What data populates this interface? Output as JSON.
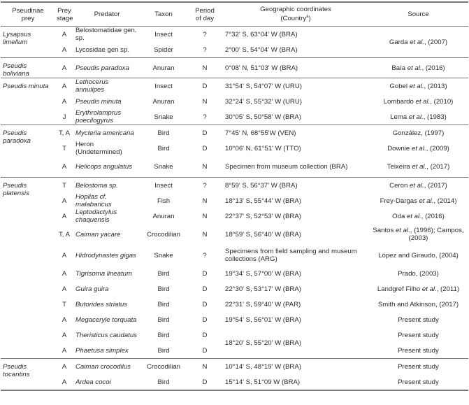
{
  "headers": {
    "prey": [
      "Pseudinae",
      "prey"
    ],
    "stage": [
      "Prey",
      "stage"
    ],
    "predator": "Predator",
    "taxon": "Taxon",
    "period": [
      "Period",
      "of day"
    ],
    "coords": [
      "Geographic coordinates",
      "(Country",
      "a",
      ")"
    ],
    "source": "Source"
  },
  "groups": [
    {
      "prey": "Lysapsus limellum",
      "rows": [
        {
          "stage": "A",
          "predator": "Belostomatidae gen. sp.",
          "italic": false,
          "taxon": "Insect",
          "period": "?",
          "coords": "7°32' S, 63°04' W (BRA)",
          "source_pre": "Garda ",
          "source_em": "et al.",
          "source_post": ", (2007)"
        },
        {
          "stage": "A",
          "predator": "Lycosidae gen sp.",
          "italic": false,
          "taxon": "Spider",
          "period": "?",
          "coords": "2°00' S, 54°04' W (BRA)"
        }
      ]
    },
    {
      "prey": "Pseudis boliviana",
      "rows": [
        {
          "stage": "A",
          "predator": "Pseudis paradoxa",
          "italic": true,
          "taxon": "Anuran",
          "period": "N",
          "coords": "0°08' N, 51°03' W (BRA)",
          "source_pre": "Baía ",
          "source_em": "et al.",
          "source_post": ", (2016)"
        }
      ]
    },
    {
      "prey": "Pseudis minuta",
      "rows": [
        {
          "stage": "A",
          "predator": "Lethocerus annulipes",
          "italic": true,
          "taxon": "Insect",
          "period": "D",
          "coords": "31°54' S, 54°07' W (URU)",
          "source_pre": "Gobel ",
          "source_em": "et al.",
          "source_post": ", (2013)"
        },
        {
          "stage": "A",
          "predator": "Pseudis minuta",
          "italic": true,
          "taxon": "Anuran",
          "period": "N",
          "coords": "32°24' S, 55°32' W (URU)",
          "source_pre": "Lombardo ",
          "source_em": "et al.",
          "source_post": ", (2010)"
        },
        {
          "stage": "J",
          "predator": "Erythrolamprus poecilogyrus",
          "italic": true,
          "taxon": "Snake",
          "period": "?",
          "coords": "30°05' S, 50°58' W (BRA)",
          "source_pre": "Lema ",
          "source_em": "et al.",
          "source_post": ", (1983)"
        }
      ]
    },
    {
      "prey": "Pseudis paradoxa",
      "rows": [
        {
          "stage": "T, A",
          "predator": "Mycteria americana",
          "italic": true,
          "taxon": "Bird",
          "period": "D",
          "coords": "7°45' N, 68°55'W (VEN)",
          "source_pre": "González, (1997)",
          "source_em": "",
          "source_post": ""
        },
        {
          "stage": "T",
          "predator": "Heron (Undetermined)",
          "italic": false,
          "taxon": "Bird",
          "period": "D",
          "coords": "10°06' N, 61°51' W (TTO)",
          "source_pre": "Downie ",
          "source_em": "et al.",
          "source_post": ", (2009)"
        },
        {
          "stage": "A",
          "predator": "Helicops angulatus",
          "italic": true,
          "taxon": "Snake",
          "period": "N",
          "coords": "Specimen from museum collection (BRA)",
          "tall": true,
          "source_pre": "Teixeira ",
          "source_em": "et al.",
          "source_post": ", (2017)"
        }
      ]
    },
    {
      "prey": "Pseudis platensis",
      "rows": [
        {
          "stage": "T",
          "predator": "Belostoma sp.",
          "italic": true,
          "taxon": "Insect",
          "period": "?",
          "coords": "8°59' S, 56°37' W (BRA)",
          "source_pre": "Ceron ",
          "source_em": "et al.",
          "source_post": ", (2017)"
        },
        {
          "stage": "A",
          "predator": "Hoplias cf. malabaricus",
          "italic": true,
          "taxon": "Fish",
          "period": "N",
          "coords": "18°13' S, 55°44' W (BRA)",
          "source_pre": "Frey-Dargas ",
          "source_em": "et al.",
          "source_post": ", (2014)"
        },
        {
          "stage": "A",
          "predator": "Leptodactylus chaquensis",
          "italic": true,
          "taxon": "Anuran",
          "period": "N",
          "coords": "22°37' S,  52°53' W (BRA)",
          "source_pre": "Oda ",
          "source_em": "et al.",
          "source_post": ", (2016)"
        },
        {
          "stage": "T, A",
          "predator": "Caiman yacare",
          "italic": true,
          "taxon": "Crocodilian",
          "period": "N",
          "coords": "18°59' S, 56°40' W (BRA)",
          "tall": true,
          "source_pre": "Santos ",
          "source_em": "et al.",
          "source_post": ", (1996); Campos, (2003)"
        },
        {
          "stage": "A",
          "predator": "Hidrodynastes gigas",
          "italic": true,
          "taxon": "Snake",
          "period": "?",
          "coords": "Specimens from field sampling and museum collections (ARG)",
          "tall": true,
          "source_pre": "López and Giraudo, (2004)",
          "source_em": "",
          "source_post": ""
        },
        {
          "stage": "A",
          "predator": "Tigrisoma lineatum",
          "italic": true,
          "taxon": "Bird",
          "period": "D",
          "coords": "19°34' S, 57°00' W (BRA)",
          "source_pre": "Prado, (2003)",
          "source_em": "",
          "source_post": ""
        },
        {
          "stage": "A",
          "predator": "Guira guira",
          "italic": true,
          "taxon": "Bird",
          "period": "D",
          "coords": "22°30' S, 53°17' W (BRA)",
          "source_pre": "Landgref Filho ",
          "source_em": "et al.",
          "source_post": ", (2011)"
        },
        {
          "stage": "T",
          "predator": "Butorides striatus",
          "italic": true,
          "taxon": "Bird",
          "period": "D",
          "coords": "22°31' S, 59°40' W (PAR)",
          "source_pre": "Smith and Atkinson, (2017)",
          "source_em": "",
          "source_post": ""
        },
        {
          "stage": "A",
          "predator": "Megaceryle torquata",
          "italic": true,
          "taxon": "Bird",
          "period": "D",
          "coords": "19°54' S, 56°01' W (BRA)",
          "source_pre": "Present study",
          "source_em": "",
          "source_post": ""
        },
        {
          "stage": "A",
          "predator": "Theristicus caudatus",
          "italic": true,
          "taxon": "Bird",
          "period": "D",
          "coords": "18°20' S, 55°20' W (BRA)",
          "coordspan": 2,
          "source_pre": "Present study",
          "source_em": "",
          "source_post": ""
        },
        {
          "stage": "A",
          "predator": "Phaetusa simplex",
          "italic": true,
          "taxon": "Bird",
          "period": "D",
          "source_pre": "Present study",
          "source_em": "",
          "source_post": ""
        }
      ]
    },
    {
      "prey": "Pseudis tocantins",
      "rows": [
        {
          "stage": "A",
          "predator": "Caiman crocodilus",
          "italic": true,
          "taxon": "Crocodilian",
          "period": "N",
          "coords": "10°14' S, 48°19' W (BRA)",
          "source_pre": "Present study",
          "source_em": "",
          "source_post": ""
        },
        {
          "stage": "A",
          "predator": "Ardea cocoi",
          "italic": true,
          "taxon": "Bird",
          "period": "D",
          "coords": "15°14' S, 51°09 W (BRA)",
          "source_pre": "Present study",
          "source_em": "",
          "source_post": ""
        }
      ]
    }
  ]
}
